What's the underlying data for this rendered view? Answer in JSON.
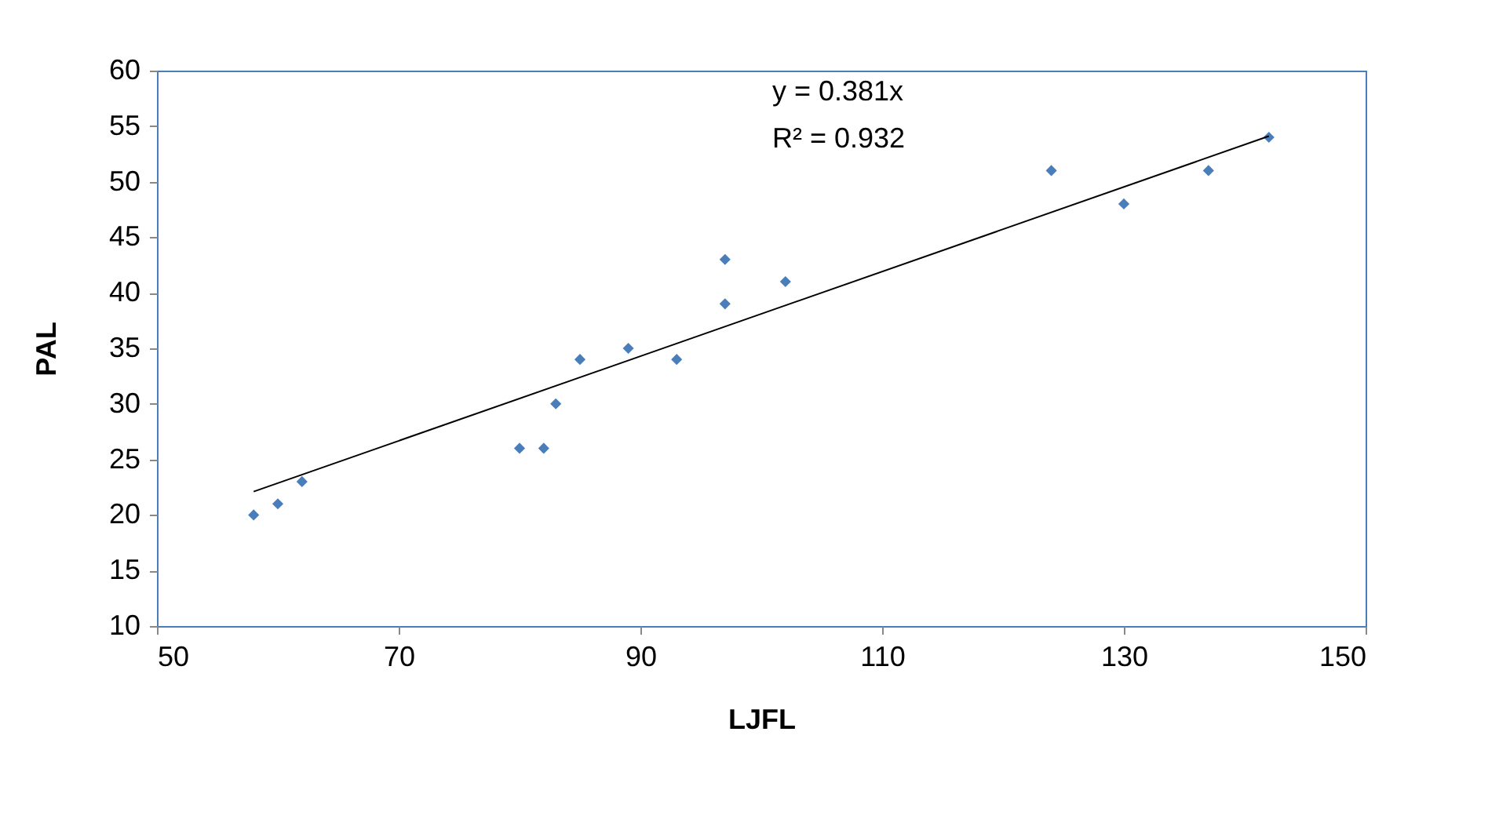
{
  "chart_data": {
    "type": "scatter",
    "xlabel": "LJFL",
    "ylabel": "PAL",
    "xlim": [
      50,
      150
    ],
    "xticks": [
      50,
      70,
      90,
      110,
      130,
      150
    ],
    "ylim": [
      10,
      60
    ],
    "yticks": [
      10,
      15,
      20,
      25,
      30,
      35,
      40,
      45,
      50,
      55,
      60
    ],
    "grid": false,
    "annotations": [
      "y = 0.381x",
      "R² = 0.932"
    ],
    "series": [
      {
        "color": "#4a7ebb",
        "marker": "diamond",
        "x": [
          58,
          60,
          62,
          80,
          82,
          83,
          85,
          89,
          93,
          97,
          97,
          102,
          124,
          130,
          137,
          142
        ],
        "values": [
          20,
          21,
          23,
          26,
          26,
          30,
          34,
          35,
          34,
          39,
          43,
          41,
          51,
          48,
          51,
          54
        ]
      },
      {
        "type": "line",
        "color": "#000000",
        "x": [
          58,
          142
        ],
        "values": [
          22.1,
          54.1
        ]
      }
    ]
  }
}
